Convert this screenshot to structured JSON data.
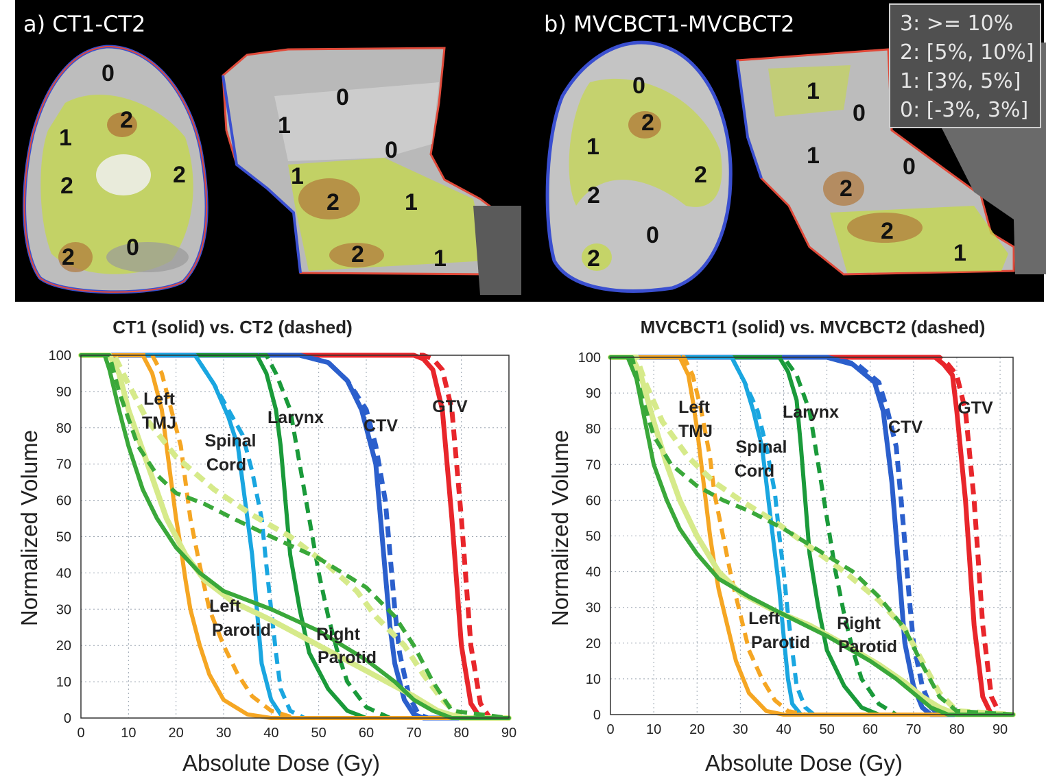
{
  "panels": {
    "a_label": "a) CT1-CT2",
    "b_label": "b) MVCBCT1-MVCBCT2",
    "a_axial_regions": [
      "0",
      "2",
      "1",
      "2",
      "2",
      "2",
      "0"
    ],
    "a_sagittal_regions": [
      "0",
      "1",
      "0",
      "1",
      "2",
      "1",
      "2",
      "1"
    ],
    "b_axial_regions": [
      "0",
      "2",
      "1",
      "2",
      "2",
      "0",
      "2"
    ],
    "b_sagittal_regions": [
      "1",
      "0",
      "1",
      "0",
      "2",
      "2",
      "1"
    ]
  },
  "legend": {
    "lines": [
      "3: >= 10%",
      "2: [5%, 10%]",
      "1: [3%, 5%]",
      "0: [-3%, 3%]"
    ]
  },
  "colors": {
    "GTV": "#e8262b",
    "CTV": "#2b5fcc",
    "Larynx": "#1a9a3a",
    "Spinal Cord": "#1aa6e0",
    "Left TMJ": "#f5a623",
    "Left Parotid": "#d6ea8a",
    "Right Parotid": "#3aa83a"
  },
  "chart_data": [
    {
      "type": "line",
      "title": "CT1 (solid) vs. CT2 (dashed)",
      "xlabel": "Absolute Dose (Gy)",
      "ylabel": "Normalized Volume",
      "xlim": [
        0,
        90
      ],
      "ylim": [
        0,
        100
      ],
      "xticks": [
        "0",
        "10",
        "20",
        "30",
        "40",
        "50",
        "60",
        "70",
        "80",
        "90"
      ],
      "yticks": [
        "0",
        "10",
        "20",
        "30",
        "40",
        "50",
        "60",
        "70",
        "80",
        "90",
        "100"
      ],
      "grid": true,
      "curve_labels": [
        "GTV",
        "CTV",
        "Larynx",
        "Spinal",
        "Cord",
        "Left",
        "TMJ",
        "Left",
        "Parotid",
        "Right",
        "Parotid"
      ],
      "series": [
        {
          "name": "GTV",
          "style": "solid",
          "x": [
            0,
            70,
            72,
            74,
            76,
            78,
            80,
            82,
            84,
            90
          ],
          "y": [
            100,
            100,
            99,
            96,
            85,
            55,
            20,
            4,
            0,
            0
          ]
        },
        {
          "name": "GTV",
          "style": "dashed",
          "x": [
            0,
            72,
            74,
            76,
            78,
            80,
            82,
            84,
            86,
            90
          ],
          "y": [
            100,
            100,
            99,
            96,
            85,
            55,
            20,
            4,
            0,
            0
          ]
        },
        {
          "name": "CTV",
          "style": "solid",
          "x": [
            0,
            46,
            52,
            56,
            59,
            62,
            63,
            64,
            65,
            66,
            68,
            70,
            72,
            90
          ],
          "y": [
            100,
            100,
            98,
            93,
            85,
            70,
            55,
            40,
            25,
            15,
            5,
            1,
            0,
            0
          ]
        },
        {
          "name": "CTV",
          "style": "dashed",
          "x": [
            0,
            46,
            52,
            56,
            60,
            62,
            64,
            65,
            66,
            67,
            69,
            71,
            73,
            90
          ],
          "y": [
            100,
            100,
            98,
            93,
            85,
            75,
            60,
            45,
            30,
            18,
            6,
            1,
            0,
            0
          ]
        },
        {
          "name": "Larynx",
          "style": "solid",
          "x": [
            0,
            37,
            39,
            41,
            42,
            43,
            44,
            46,
            48,
            52,
            56,
            60,
            90
          ],
          "y": [
            100,
            100,
            95,
            85,
            75,
            60,
            45,
            30,
            18,
            8,
            2,
            0,
            0
          ]
        },
        {
          "name": "Larynx",
          "style": "dashed",
          "x": [
            0,
            39,
            41,
            44,
            46,
            48,
            50,
            52,
            54,
            56,
            60,
            65,
            90
          ],
          "y": [
            100,
            100,
            95,
            85,
            70,
            55,
            40,
            28,
            18,
            10,
            3,
            0,
            0
          ]
        },
        {
          "name": "Spinal Cord",
          "style": "solid",
          "x": [
            0,
            24,
            28,
            31,
            33,
            34,
            35,
            36,
            37,
            38,
            40,
            42,
            44,
            90
          ],
          "y": [
            100,
            100,
            92,
            83,
            75,
            65,
            55,
            45,
            30,
            15,
            5,
            1,
            0,
            0
          ]
        },
        {
          "name": "Spinal Cord",
          "style": "dashed",
          "x": [
            0,
            24,
            28,
            31,
            34,
            36,
            38,
            39,
            40,
            41,
            42,
            44,
            47,
            90
          ],
          "y": [
            100,
            100,
            92,
            85,
            78,
            68,
            55,
            42,
            30,
            18,
            8,
            2,
            0,
            0
          ]
        },
        {
          "name": "Left TMJ",
          "style": "solid",
          "x": [
            0,
            13,
            15,
            17,
            18,
            19,
            20,
            21,
            22,
            23,
            25,
            27,
            30,
            35,
            40,
            90
          ],
          "y": [
            100,
            100,
            95,
            85,
            75,
            65,
            55,
            47,
            38,
            30,
            20,
            12,
            5,
            1,
            0,
            0
          ]
        },
        {
          "name": "Left TMJ",
          "style": "dashed",
          "x": [
            0,
            15,
            17,
            19,
            21,
            22,
            23,
            25,
            27,
            30,
            33,
            36,
            40,
            45,
            90
          ],
          "y": [
            100,
            100,
            95,
            85,
            75,
            65,
            55,
            42,
            30,
            20,
            12,
            6,
            2,
            0,
            0
          ]
        },
        {
          "name": "Left Parotid",
          "style": "solid",
          "x": [
            0,
            6,
            8,
            10,
            14,
            18,
            22,
            26,
            32,
            40,
            50,
            60,
            70,
            75,
            80,
            90
          ],
          "y": [
            100,
            100,
            95,
            85,
            70,
            55,
            45,
            38,
            32,
            27,
            20,
            13,
            6,
            2,
            0,
            0
          ]
        },
        {
          "name": "Left Parotid",
          "style": "dashed",
          "x": [
            0,
            7,
            10,
            14,
            20,
            28,
            36,
            44,
            52,
            58,
            62,
            68,
            72,
            76,
            80,
            90
          ],
          "y": [
            100,
            100,
            92,
            82,
            72,
            63,
            56,
            50,
            42,
            35,
            28,
            20,
            12,
            5,
            0,
            0
          ]
        },
        {
          "name": "Right Parotid",
          "style": "solid",
          "x": [
            0,
            5,
            6,
            8,
            10,
            13,
            16,
            20,
            25,
            30,
            40,
            50,
            60,
            66,
            70,
            74,
            78,
            90
          ],
          "y": [
            100,
            100,
            96,
            85,
            75,
            63,
            55,
            47,
            40,
            35,
            30,
            24,
            16,
            10,
            5,
            2,
            0,
            0
          ]
        },
        {
          "name": "Right Parotid",
          "style": "dashed",
          "x": [
            0,
            6,
            8,
            12,
            16,
            20,
            26,
            32,
            40,
            50,
            60,
            66,
            70,
            74,
            78,
            90
          ],
          "y": [
            100,
            100,
            90,
            75,
            67,
            62,
            59,
            55,
            50,
            44,
            36,
            28,
            20,
            10,
            2,
            0
          ]
        }
      ]
    },
    {
      "type": "line",
      "title": "MVCBCT1 (solid) vs. MVCBCT2 (dashed)",
      "xlabel": "Absolute Dose (Gy)",
      "ylabel": "Normalized Volume",
      "xlim": [
        0,
        93
      ],
      "ylim": [
        0,
        100
      ],
      "xticks": [
        "0",
        "10",
        "20",
        "30",
        "40",
        "50",
        "60",
        "70",
        "80",
        "90"
      ],
      "yticks": [
        "0",
        "10",
        "20",
        "30",
        "40",
        "50",
        "60",
        "70",
        "80",
        "90",
        "100"
      ],
      "grid": true,
      "curve_labels": [
        "GTV",
        "CTV",
        "Larynx",
        "Spinal",
        "Cord",
        "Left",
        "TMJ",
        "Left",
        "Parotid",
        "Right",
        "Parotid"
      ],
      "series": [
        {
          "name": "GTV",
          "style": "solid",
          "x": [
            0,
            75,
            77,
            79,
            80,
            82,
            84,
            86,
            88,
            93
          ],
          "y": [
            100,
            100,
            98,
            95,
            85,
            60,
            25,
            5,
            0,
            0
          ]
        },
        {
          "name": "GTV",
          "style": "dashed",
          "x": [
            0,
            76,
            78,
            80,
            82,
            84,
            86,
            88,
            90,
            93
          ],
          "y": [
            100,
            100,
            98,
            95,
            85,
            60,
            25,
            5,
            0,
            0
          ]
        },
        {
          "name": "CTV",
          "style": "solid",
          "x": [
            0,
            50,
            56,
            61,
            63,
            64,
            65,
            66,
            67,
            68,
            70,
            72,
            74,
            93
          ],
          "y": [
            100,
            100,
            98,
            93,
            85,
            75,
            65,
            50,
            35,
            20,
            8,
            2,
            0,
            0
          ]
        },
        {
          "name": "CTV",
          "style": "dashed",
          "x": [
            0,
            50,
            57,
            62,
            64,
            66,
            67,
            68,
            69,
            70,
            72,
            74,
            76,
            93
          ],
          "y": [
            100,
            100,
            98,
            93,
            85,
            75,
            62,
            48,
            33,
            20,
            8,
            2,
            0,
            0
          ]
        },
        {
          "name": "Larynx",
          "style": "solid",
          "x": [
            0,
            39,
            41,
            43,
            44,
            45,
            46,
            48,
            50,
            54,
            58,
            62,
            93
          ],
          "y": [
            100,
            100,
            96,
            88,
            75,
            60,
            45,
            30,
            18,
            8,
            2,
            0,
            0
          ]
        },
        {
          "name": "Larynx",
          "style": "dashed",
          "x": [
            0,
            40,
            43,
            46,
            48,
            50,
            52,
            54,
            56,
            58,
            62,
            66,
            93
          ],
          "y": [
            100,
            100,
            95,
            85,
            70,
            55,
            40,
            28,
            18,
            10,
            3,
            0,
            0
          ]
        },
        {
          "name": "Spinal Cord",
          "style": "solid",
          "x": [
            0,
            28,
            31,
            33,
            35,
            36,
            37,
            38,
            39,
            40,
            41,
            42,
            44,
            93
          ],
          "y": [
            100,
            100,
            93,
            85,
            75,
            65,
            55,
            45,
            35,
            22,
            10,
            3,
            0,
            0
          ]
        },
        {
          "name": "Spinal Cord",
          "style": "dashed",
          "x": [
            0,
            28,
            31,
            34,
            36,
            38,
            39,
            40,
            41,
            42,
            43,
            45,
            47,
            93
          ],
          "y": [
            100,
            100,
            93,
            85,
            75,
            62,
            50,
            40,
            28,
            18,
            8,
            2,
            0,
            0
          ]
        },
        {
          "name": "Left TMJ",
          "style": "solid",
          "x": [
            0,
            16,
            18,
            19,
            20,
            21,
            22,
            23,
            24,
            25,
            27,
            29,
            32,
            36,
            40,
            93
          ],
          "y": [
            100,
            100,
            95,
            88,
            80,
            70,
            60,
            50,
            42,
            35,
            25,
            15,
            6,
            1,
            0,
            0
          ]
        },
        {
          "name": "Left TMJ",
          "style": "dashed",
          "x": [
            0,
            17,
            19,
            21,
            23,
            24,
            26,
            28,
            30,
            32,
            35,
            38,
            41,
            45,
            93
          ],
          "y": [
            100,
            100,
            95,
            85,
            72,
            62,
            50,
            38,
            28,
            18,
            10,
            4,
            1,
            0,
            0
          ]
        },
        {
          "name": "Left Parotid",
          "style": "solid",
          "x": [
            0,
            5,
            7,
            10,
            13,
            16,
            20,
            25,
            30,
            38,
            46,
            55,
            62,
            68,
            72,
            76,
            80,
            93
          ],
          "y": [
            100,
            100,
            95,
            82,
            70,
            60,
            50,
            40,
            34,
            29,
            25,
            19,
            14,
            9,
            5,
            2,
            0,
            0
          ]
        },
        {
          "name": "Left Parotid",
          "style": "dashed",
          "x": [
            0,
            6,
            8,
            12,
            18,
            24,
            30,
            38,
            46,
            54,
            62,
            68,
            72,
            76,
            80,
            93
          ],
          "y": [
            100,
            100,
            93,
            82,
            72,
            65,
            60,
            54,
            47,
            40,
            32,
            24,
            15,
            6,
            1,
            0
          ]
        },
        {
          "name": "Right Parotid",
          "style": "solid",
          "x": [
            0,
            4,
            6,
            8,
            10,
            13,
            16,
            20,
            25,
            32,
            40,
            50,
            60,
            66,
            70,
            74,
            78,
            93
          ],
          "y": [
            100,
            100,
            94,
            82,
            70,
            60,
            52,
            45,
            38,
            33,
            28,
            22,
            15,
            10,
            6,
            2,
            0,
            0
          ]
        },
        {
          "name": "Right Parotid",
          "style": "dashed",
          "x": [
            0,
            5,
            7,
            10,
            14,
            20,
            26,
            32,
            40,
            48,
            56,
            62,
            68,
            72,
            76,
            80,
            93
          ],
          "y": [
            100,
            100,
            90,
            78,
            70,
            64,
            60,
            57,
            52,
            46,
            40,
            33,
            24,
            14,
            5,
            1,
            0
          ]
        }
      ]
    }
  ]
}
